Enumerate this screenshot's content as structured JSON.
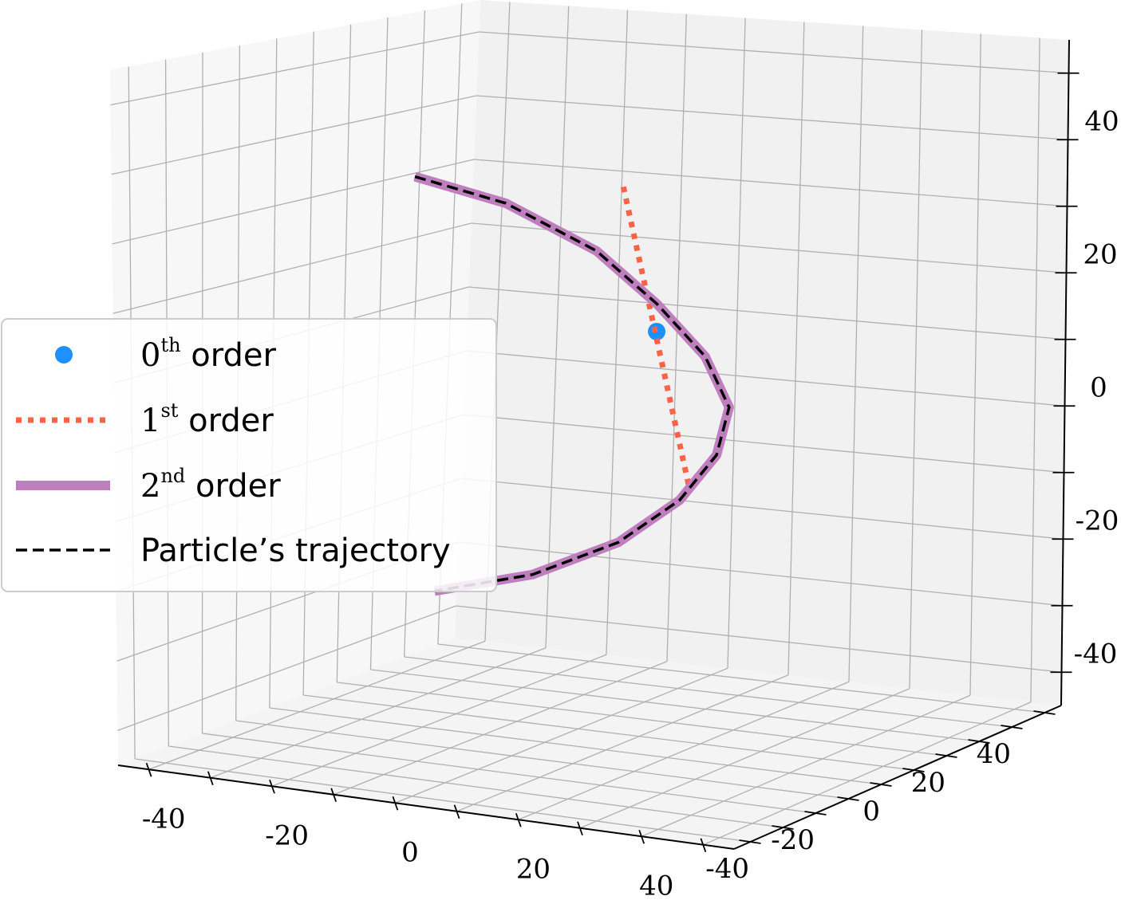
{
  "chart_data": {
    "type": "line",
    "title": "",
    "xlabel": "",
    "ylabel": "",
    "zlabel": "",
    "projection": "3d",
    "grid": true,
    "xlim": [
      -50,
      50
    ],
    "ylim": [
      -50,
      50
    ],
    "zlim": [
      -50,
      50
    ],
    "x_ticks": [
      "-40",
      "-20",
      "0",
      "20",
      "40"
    ],
    "y_ticks": [
      "-40",
      "-20",
      "0",
      "20",
      "40"
    ],
    "z_ticks": [
      "40",
      "20",
      "0",
      "-20",
      "-40"
    ],
    "legend_position": "center-left",
    "series": [
      {
        "key": "zeroth",
        "name_base": "0",
        "name_sup": "th",
        "name_rest": " order",
        "style": "point",
        "color": "#1e90ff",
        "points": [
          [
            10,
            0,
            10
          ]
        ]
      },
      {
        "key": "first",
        "name_base": "1",
        "name_sup": "st",
        "name_rest": " order",
        "style": "dotted",
        "color": "#ff6347",
        "points": [
          [
            10,
            -10,
            32
          ],
          [
            10,
            10,
            -14
          ]
        ]
      },
      {
        "key": "second",
        "name_base": "2",
        "name_sup": "nd",
        "name_rest": " order",
        "style": "solid",
        "color": "#bf7fbf",
        "points": [
          [
            -30,
            0,
            30
          ],
          [
            -15,
            0,
            27
          ],
          [
            0,
            0,
            21
          ],
          [
            10,
            0,
            14
          ],
          [
            18,
            0,
            7
          ],
          [
            22,
            0,
            0
          ],
          [
            20,
            0,
            -7
          ],
          [
            14,
            0,
            -14
          ],
          [
            4,
            0,
            -21
          ],
          [
            -10,
            0,
            -27
          ],
          [
            -26,
            0,
            -31
          ]
        ]
      },
      {
        "key": "trajectory",
        "name_base": "",
        "name_sup": "",
        "name_rest": "Particle’s trajectory",
        "style": "dashed",
        "color": "#000000",
        "points": [
          [
            -30,
            0,
            30
          ],
          [
            -15,
            0,
            27
          ],
          [
            0,
            0,
            21
          ],
          [
            10,
            0,
            14
          ],
          [
            18,
            0,
            7
          ],
          [
            22,
            0,
            0
          ],
          [
            20,
            0,
            -7
          ],
          [
            14,
            0,
            -14
          ],
          [
            4,
            0,
            -21
          ],
          [
            -10,
            0,
            -27
          ],
          [
            -26,
            0,
            -31
          ]
        ]
      }
    ]
  }
}
